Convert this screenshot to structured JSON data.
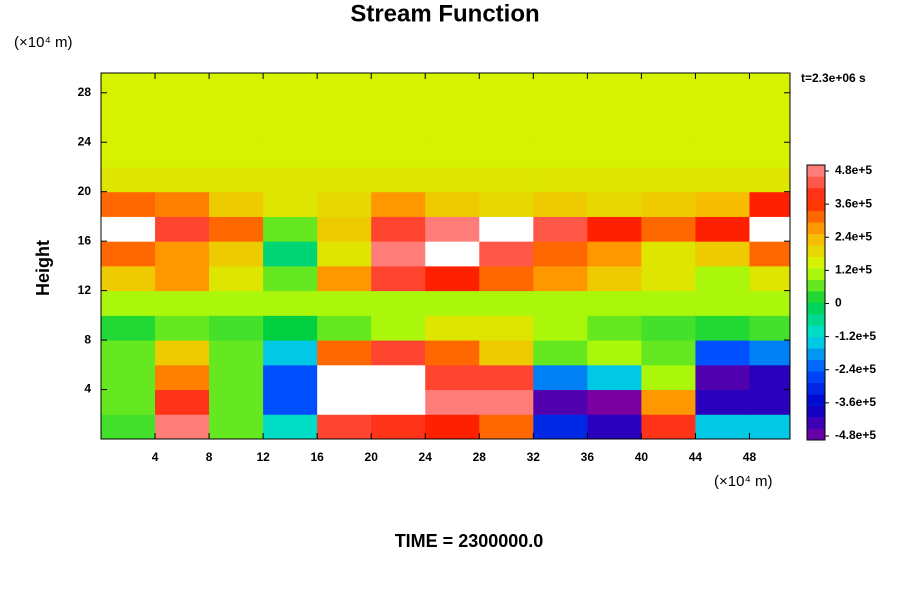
{
  "chart_data": {
    "type": "contour",
    "title": "Stream Function",
    "y_unit": "(×10⁴ m)",
    "x_unit": "(×10⁴ m)",
    "y_label": "Height",
    "time_label": "t=2.3e+06 s",
    "footer": "TIME = 2300000.0",
    "x": [
      2,
      6,
      10,
      14,
      18,
      22,
      26,
      30,
      34,
      38,
      42,
      46,
      50
    ],
    "y": [
      1,
      3,
      5,
      7,
      9,
      11,
      13,
      15,
      17,
      19,
      21,
      23,
      25,
      27,
      29
    ],
    "z": [
      [
        30000,
        450000,
        50000,
        -100000,
        400000,
        380000,
        350000,
        300000,
        -300000,
        -400000,
        380000,
        -150000,
        -150000
      ],
      [
        50000,
        380000,
        50000,
        -250000,
        600000,
        550000,
        450000,
        450000,
        -450000,
        -550000,
        250000,
        -400000,
        -400000
      ],
      [
        50000,
        280000,
        50000,
        -250000,
        600000,
        600000,
        400000,
        400000,
        -200000,
        -150000,
        100000,
        -450000,
        -400000
      ],
      [
        50000,
        200000,
        50000,
        -150000,
        300000,
        400000,
        300000,
        200000,
        50000,
        100000,
        50000,
        -250000,
        -200000
      ],
      [
        20000,
        50000,
        30000,
        0,
        60000,
        100000,
        150000,
        150000,
        100000,
        50000,
        30000,
        20000,
        30000
      ],
      [
        100000,
        100000,
        100000,
        100000,
        100000,
        100000,
        100000,
        100000,
        100000,
        100000,
        100000,
        100000,
        100000
      ],
      [
        200000,
        250000,
        150000,
        50000,
        250000,
        400000,
        350000,
        300000,
        250000,
        200000,
        150000,
        100000,
        150000
      ],
      [
        300000,
        250000,
        200000,
        -50000,
        150000,
        450000,
        500000,
        420000,
        300000,
        250000,
        150000,
        200000,
        300000
      ],
      [
        500000,
        400000,
        300000,
        50000,
        200000,
        400000,
        450000,
        520000,
        420000,
        350000,
        300000,
        350000,
        500000
      ],
      [
        300000,
        280000,
        200000,
        150000,
        180000,
        250000,
        200000,
        180000,
        200000,
        180000,
        200000,
        220000,
        350000
      ],
      [
        150000,
        150000,
        150000,
        150000,
        150000,
        150000,
        150000,
        150000,
        150000,
        150000,
        150000,
        150000,
        150000
      ],
      [
        140000,
        140000,
        140000,
        140000,
        140000,
        140000,
        140000,
        140000,
        140000,
        140000,
        140000,
        140000,
        140000
      ],
      [
        130000,
        130000,
        130000,
        130000,
        130000,
        130000,
        130000,
        130000,
        130000,
        130000,
        130000,
        130000,
        130000
      ],
      [
        130000,
        130000,
        130000,
        130000,
        130000,
        130000,
        130000,
        130000,
        130000,
        130000,
        130000,
        130000,
        130000
      ],
      [
        130000,
        130000,
        130000,
        130000,
        130000,
        130000,
        130000,
        130000,
        130000,
        130000,
        130000,
        130000,
        130000
      ]
    ],
    "xlim": [
      0,
      51
    ],
    "ylim": [
      0,
      29.6
    ],
    "xticks": [
      4,
      8,
      12,
      16,
      20,
      24,
      28,
      32,
      36,
      40,
      44,
      48
    ],
    "yticks": [
      4,
      8,
      12,
      16,
      20,
      24,
      28
    ],
    "zlim": [
      -480000,
      480000
    ],
    "zticks": [
      {
        "value": -480000,
        "label": "-4.8e+5"
      },
      {
        "value": -360000,
        "label": "-3.6e+5"
      },
      {
        "value": -240000,
        "label": "-2.4e+5"
      },
      {
        "value": -120000,
        "label": "-1.2e+5"
      },
      0,
      {
        "value": 120000,
        "label": "1.2e+5"
      },
      {
        "value": 240000,
        "label": "2.4e+5"
      },
      {
        "value": 360000,
        "label": "3.6e+5"
      },
      {
        "value": 480000,
        "label": "4.8e+5"
      }
    ],
    "colorscale": [
      "#7a00a0",
      "#0000c8",
      "#0050ff",
      "#00e0e0",
      "#00d040",
      "#ccff00",
      "#ffb000",
      "#ff2000",
      "#ff9090"
    ],
    "over_color": "#ffffff"
  }
}
